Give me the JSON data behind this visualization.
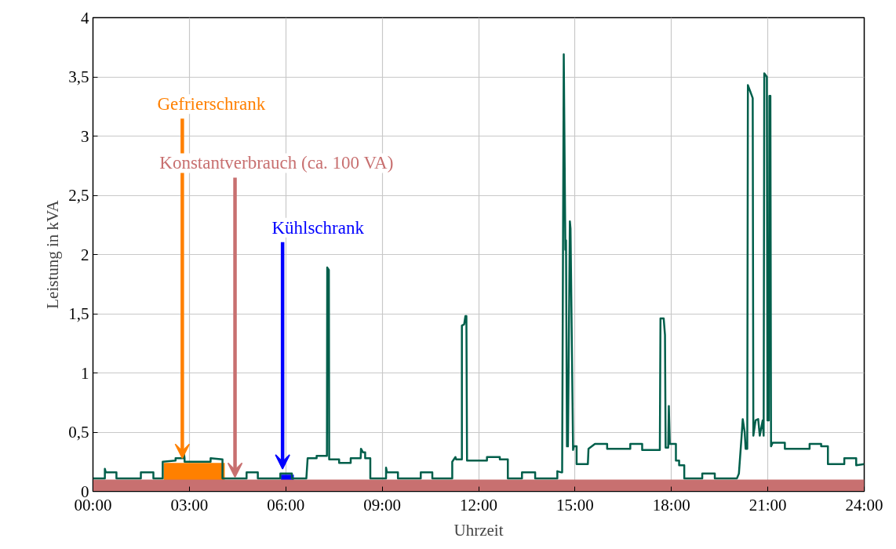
{
  "chart_data": {
    "type": "line",
    "xlabel": "Uhrzeit",
    "ylabel": "Leistung in kVA",
    "xlim": [
      0,
      24
    ],
    "ylim": [
      0,
      4
    ],
    "xticks": [
      {
        "value": 0,
        "label": "00:00"
      },
      {
        "value": 3,
        "label": "03:00"
      },
      {
        "value": 6,
        "label": "06:00"
      },
      {
        "value": 9,
        "label": "09:00"
      },
      {
        "value": 12,
        "label": "12:00"
      },
      {
        "value": 15,
        "label": "15:00"
      },
      {
        "value": 18,
        "label": "18:00"
      },
      {
        "value": 21,
        "label": "21:00"
      },
      {
        "value": 24,
        "label": "24:00"
      }
    ],
    "yticks": [
      0,
      {
        "value": 0.5,
        "label": "0,5"
      },
      1,
      {
        "value": 1.5,
        "label": "1,5"
      },
      2,
      {
        "value": 2.5,
        "label": "2,5"
      },
      3,
      {
        "value": 3.5,
        "label": "3,5"
      },
      4
    ],
    "grid": true,
    "series": [
      {
        "type": "area",
        "color": "#ff8000",
        "x": [
          2.2,
          4.1
        ],
        "values": [
          0.24,
          0.24
        ]
      },
      {
        "type": "area",
        "color": "#0000ff",
        "x": [
          5.85,
          6.25
        ],
        "values": [
          0.14,
          0.14
        ]
      },
      {
        "type": "area",
        "color": "#c87070",
        "x": [
          0,
          24
        ],
        "values": [
          0.1,
          0.1
        ]
      },
      {
        "type": "line",
        "color": "#005f4b",
        "x": [
          0,
          0.37,
          0.37,
          0.4,
          0.73,
          0.73,
          1.49,
          1.49,
          1.88,
          1.88,
          2.17,
          2.17,
          2.57,
          2.57,
          2.8,
          2.82,
          2.85,
          2.85,
          3.66,
          3.66,
          4.03,
          4.03,
          4.78,
          4.78,
          5.13,
          5.13,
          5.83,
          5.83,
          6.19,
          6.19,
          6.64,
          6.68,
          6.96,
          6.96,
          7.28,
          7.29,
          7.34,
          7.35,
          7.66,
          7.66,
          8.02,
          8.02,
          8.33,
          8.34,
          8.4,
          8.47,
          8.47,
          8.63,
          8.63,
          9.12,
          9.12,
          9.15,
          9.49,
          9.49,
          10.2,
          10.2,
          10.56,
          10.56,
          11.18,
          11.18,
          11.28,
          11.3,
          11.48,
          11.48,
          11.55,
          11.59,
          11.62,
          11.64,
          12.26,
          12.26,
          12.66,
          12.66,
          12.91,
          12.91,
          13.35,
          13.35,
          13.76,
          13.76,
          14.45,
          14.45,
          14.58,
          14.6,
          14.65,
          14.7,
          14.72,
          14.75,
          14.78,
          14.84,
          14.86,
          14.94,
          14.96,
          15.05,
          15.05,
          15.4,
          15.42,
          15.62,
          16.0,
          16.0,
          16.72,
          16.72,
          17.09,
          17.09,
          17.64,
          17.66,
          17.76,
          17.8,
          17.82,
          17.9,
          17.92,
          17.95,
          18.14,
          18.14,
          18.24,
          18.24,
          18.4,
          18.4,
          18.96,
          18.96,
          19.35,
          19.35,
          20.04,
          20.1,
          20.18,
          20.22,
          20.28,
          20.31,
          20.36,
          20.38,
          20.45,
          20.53,
          20.55,
          20.62,
          20.7,
          20.75,
          20.84,
          20.87,
          20.89,
          20.97,
          20.99,
          21.03,
          21.05,
          21.08,
          21.1,
          21.15,
          21.53,
          21.53,
          22.3,
          22.3,
          22.66,
          22.66,
          22.87,
          22.87,
          23.38,
          23.38,
          23.75,
          23.75,
          24
        ],
        "values": [
          0.11,
          0.11,
          0.19,
          0.16,
          0.16,
          0.11,
          0.11,
          0.16,
          0.16,
          0.11,
          0.11,
          0.25,
          0.26,
          0.28,
          0.28,
          0.34,
          0.28,
          0.25,
          0.25,
          0.28,
          0.27,
          0.11,
          0.11,
          0.16,
          0.16,
          0.11,
          0.11,
          0.15,
          0.15,
          0.11,
          0.11,
          0.28,
          0.28,
          0.3,
          0.3,
          1.89,
          1.87,
          0.27,
          0.27,
          0.24,
          0.24,
          0.28,
          0.28,
          0.36,
          0.33,
          0.33,
          0.28,
          0.28,
          0.11,
          0.11,
          0.2,
          0.16,
          0.16,
          0.11,
          0.11,
          0.16,
          0.16,
          0.11,
          0.11,
          0.25,
          0.29,
          0.27,
          0.27,
          1.4,
          1.41,
          1.48,
          1.48,
          0.26,
          0.26,
          0.29,
          0.29,
          0.27,
          0.27,
          0.11,
          0.11,
          0.16,
          0.16,
          0.11,
          0.11,
          0.17,
          0.16,
          0.16,
          3.69,
          2.04,
          2.12,
          0.38,
          0.38,
          2.28,
          2.22,
          0.35,
          0.38,
          0.38,
          0.23,
          0.23,
          0.36,
          0.4,
          0.4,
          0.36,
          0.36,
          0.4,
          0.4,
          0.35,
          0.35,
          1.46,
          1.46,
          1.32,
          0.37,
          0.37,
          0.72,
          0.4,
          0.4,
          0.26,
          0.26,
          0.22,
          0.22,
          0.11,
          0.11,
          0.15,
          0.15,
          0.11,
          0.11,
          0.15,
          0.45,
          0.61,
          0.5,
          0.36,
          0.36,
          3.43,
          3.38,
          3.32,
          0.47,
          0.6,
          0.61,
          0.47,
          0.6,
          0.47,
          3.53,
          3.5,
          0.6,
          0.6,
          3.34,
          3.34,
          0.38,
          0.41,
          0.41,
          0.36,
          0.36,
          0.4,
          0.4,
          0.38,
          0.38,
          0.23,
          0.23,
          0.28,
          0.28,
          0.22,
          0.23
        ]
      }
    ],
    "annotations": [
      {
        "text": "Gefrierschrank",
        "x": 2.78,
        "y": 0.28
      },
      {
        "text": "Konstantverbrauch (ca. 100 VA)",
        "x": 4.42,
        "y": 0.12
      },
      {
        "text": "Kühlschrank",
        "x": 5.9,
        "y": 0.19
      }
    ]
  }
}
